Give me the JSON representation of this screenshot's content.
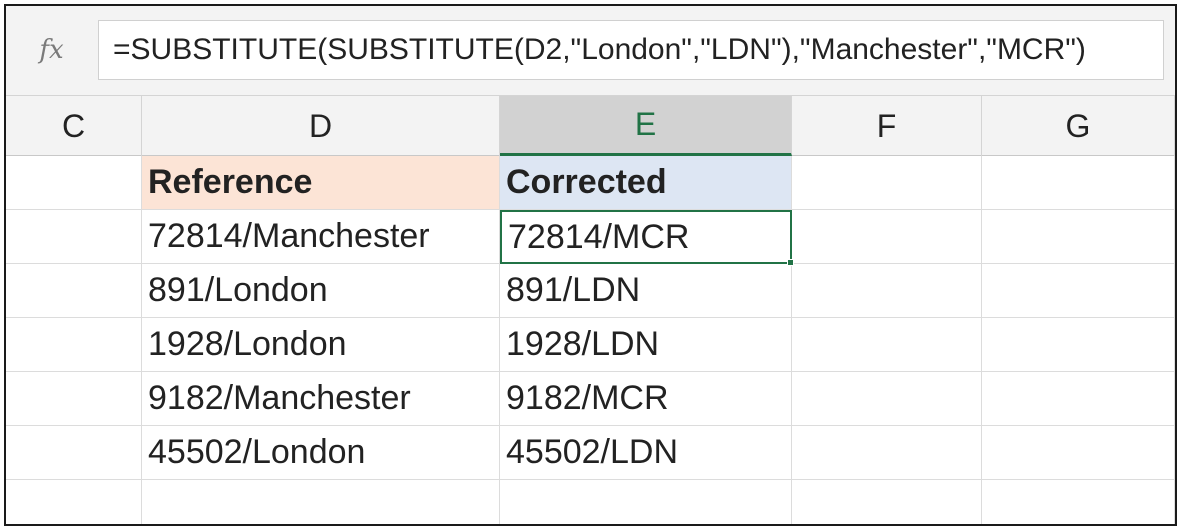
{
  "formula_bar": {
    "fx_label": "fx",
    "formula": "=SUBSTITUTE(SUBSTITUTE(D2,\"London\",\"LDN\"),\"Manchester\",\"MCR\")"
  },
  "columns": [
    "C",
    "D",
    "E",
    "F",
    "G"
  ],
  "selected_column": "E",
  "table": {
    "headers": {
      "reference": "Reference",
      "corrected": "Corrected"
    },
    "rows": [
      {
        "reference": "72814/Manchester",
        "corrected": "72814/MCR"
      },
      {
        "reference": "891/London",
        "corrected": "891/LDN"
      },
      {
        "reference": "1928/London",
        "corrected": "1928/LDN"
      },
      {
        "reference": "9182/Manchester",
        "corrected": "9182/MCR"
      },
      {
        "reference": "45502/London",
        "corrected": "45502/LDN"
      }
    ]
  },
  "colors": {
    "accent": "#217346",
    "reference_header_fill": "#fce4d6",
    "corrected_header_fill": "#dde6f3"
  }
}
